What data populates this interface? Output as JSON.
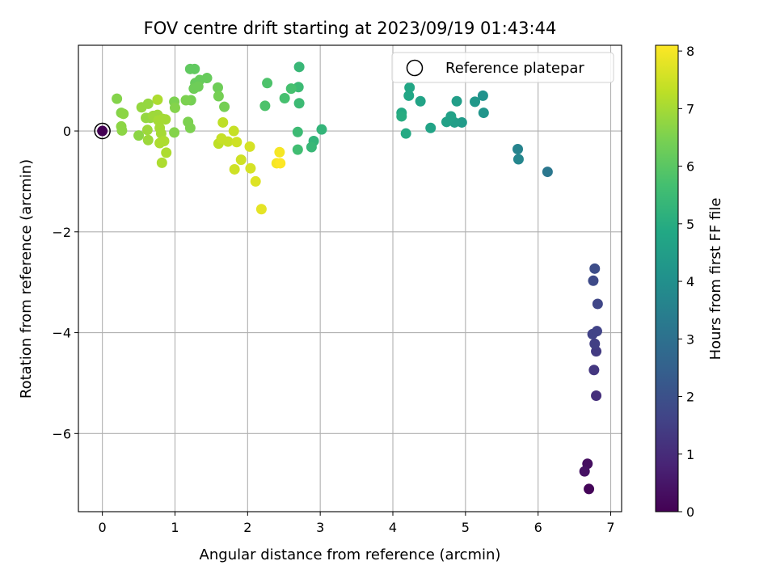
{
  "chart_data": {
    "type": "scatter",
    "title": "FOV centre drift starting at 2023/09/19 01:43:44",
    "xlabel": "Angular distance from reference (arcmin)",
    "ylabel": "Rotation from reference (arcmin)",
    "xlim": [
      -0.33,
      7.15
    ],
    "ylim": [
      -7.55,
      1.7
    ],
    "xticks": [
      0,
      1,
      2,
      3,
      4,
      5,
      6,
      7
    ],
    "xtick_labels": [
      "0",
      "1",
      "2",
      "3",
      "4",
      "5",
      "6",
      "7"
    ],
    "yticks": [
      -6,
      -4,
      -2,
      0
    ],
    "ytick_labels": [
      "−6",
      "−4",
      "−2",
      "0"
    ],
    "grid": true,
    "legend": {
      "position": "top-right",
      "entries": [
        "Reference platepar"
      ]
    },
    "colorbar": {
      "label": "Hours from first FF file",
      "range": [
        0,
        8.1
      ],
      "ticks": [
        0,
        1,
        2,
        3,
        4,
        5,
        6,
        7,
        8
      ],
      "tick_labels": [
        "0",
        "1",
        "2",
        "3",
        "4",
        "5",
        "6",
        "7",
        "8"
      ],
      "colormap": "viridis"
    },
    "reference_point": {
      "x": 0,
      "y": 0,
      "hours": 0
    },
    "points": [
      {
        "x": 6.7,
        "y": -7.1,
        "h": 0.1
      },
      {
        "x": 6.68,
        "y": -6.6,
        "h": 0.3
      },
      {
        "x": 6.64,
        "y": -6.75,
        "h": 0.4
      },
      {
        "x": 6.8,
        "y": -5.25,
        "h": 1.1
      },
      {
        "x": 6.77,
        "y": -4.74,
        "h": 1.3
      },
      {
        "x": 6.8,
        "y": -4.37,
        "h": 1.4
      },
      {
        "x": 6.78,
        "y": -4.22,
        "h": 1.5
      },
      {
        "x": 6.75,
        "y": -4.03,
        "h": 1.6
      },
      {
        "x": 6.81,
        "y": -3.97,
        "h": 1.6
      },
      {
        "x": 6.82,
        "y": -3.43,
        "h": 1.7
      },
      {
        "x": 6.76,
        "y": -2.97,
        "h": 1.8
      },
      {
        "x": 6.78,
        "y": -2.73,
        "h": 1.9
      },
      {
        "x": 6.13,
        "y": -0.81,
        "h": 3.2
      },
      {
        "x": 5.72,
        "y": -0.36,
        "h": 3.6
      },
      {
        "x": 5.73,
        "y": -0.56,
        "h": 3.7
      },
      {
        "x": 5.24,
        "y": 0.7,
        "h": 4.1
      },
      {
        "x": 5.25,
        "y": 0.36,
        "h": 4.2
      },
      {
        "x": 5.13,
        "y": 0.58,
        "h": 4.3
      },
      {
        "x": 4.95,
        "y": 0.17,
        "h": 4.4
      },
      {
        "x": 4.88,
        "y": 0.59,
        "h": 4.5
      },
      {
        "x": 4.85,
        "y": 0.17,
        "h": 4.5
      },
      {
        "x": 4.8,
        "y": 0.29,
        "h": 4.6
      },
      {
        "x": 4.74,
        "y": 0.18,
        "h": 4.6
      },
      {
        "x": 4.52,
        "y": 0.06,
        "h": 4.7
      },
      {
        "x": 4.38,
        "y": 0.59,
        "h": 4.7
      },
      {
        "x": 4.23,
        "y": 0.86,
        "h": 4.8
      },
      {
        "x": 4.22,
        "y": 0.7,
        "h": 4.8
      },
      {
        "x": 4.18,
        "y": -0.05,
        "h": 4.9
      },
      {
        "x": 4.12,
        "y": 0.36,
        "h": 4.9
      },
      {
        "x": 4.12,
        "y": 0.29,
        "h": 5.0
      },
      {
        "x": 3.02,
        "y": 0.03,
        "h": 5.3
      },
      {
        "x": 2.91,
        "y": -0.2,
        "h": 5.3
      },
      {
        "x": 2.88,
        "y": -0.32,
        "h": 5.4
      },
      {
        "x": 2.71,
        "y": 1.27,
        "h": 5.4
      },
      {
        "x": 2.7,
        "y": 0.87,
        "h": 5.5
      },
      {
        "x": 2.71,
        "y": 0.55,
        "h": 5.5
      },
      {
        "x": 2.69,
        "y": -0.02,
        "h": 5.5
      },
      {
        "x": 2.69,
        "y": -0.37,
        "h": 5.6
      },
      {
        "x": 2.6,
        "y": 0.84,
        "h": 5.7
      },
      {
        "x": 2.51,
        "y": 0.65,
        "h": 5.7
      },
      {
        "x": 2.27,
        "y": 0.95,
        "h": 5.8
      },
      {
        "x": 2.24,
        "y": 0.5,
        "h": 5.8
      },
      {
        "x": 1.27,
        "y": 1.23,
        "h": 6.1
      },
      {
        "x": 1.21,
        "y": 1.23,
        "h": 6.1
      },
      {
        "x": 1.34,
        "y": 1.01,
        "h": 6.2
      },
      {
        "x": 1.28,
        "y": 0.95,
        "h": 6.2
      },
      {
        "x": 1.44,
        "y": 1.05,
        "h": 6.2
      },
      {
        "x": 1.32,
        "y": 0.88,
        "h": 6.3
      },
      {
        "x": 1.26,
        "y": 0.84,
        "h": 6.3
      },
      {
        "x": 1.59,
        "y": 0.86,
        "h": 6.3
      },
      {
        "x": 1.6,
        "y": 0.69,
        "h": 6.4
      },
      {
        "x": 1.68,
        "y": 0.48,
        "h": 6.4
      },
      {
        "x": 1.22,
        "y": 0.61,
        "h": 6.4
      },
      {
        "x": 1.15,
        "y": 0.61,
        "h": 6.5
      },
      {
        "x": 1.18,
        "y": 0.18,
        "h": 6.5
      },
      {
        "x": 1.21,
        "y": 0.06,
        "h": 6.5
      },
      {
        "x": 0.99,
        "y": 0.58,
        "h": 6.5
      },
      {
        "x": 1.0,
        "y": 0.46,
        "h": 6.6
      },
      {
        "x": 0.99,
        "y": -0.03,
        "h": 6.6
      },
      {
        "x": 0.2,
        "y": 0.64,
        "h": 6.6
      },
      {
        "x": 0.26,
        "y": 0.36,
        "h": 6.6
      },
      {
        "x": 0.29,
        "y": 0.34,
        "h": 6.7
      },
      {
        "x": 0.26,
        "y": 0.09,
        "h": 6.7
      },
      {
        "x": 0.27,
        "y": 0.01,
        "h": 6.7
      },
      {
        "x": 0.5,
        "y": -0.09,
        "h": 6.7
      },
      {
        "x": 0.54,
        "y": 0.47,
        "h": 6.8
      },
      {
        "x": 0.63,
        "y": 0.54,
        "h": 6.8
      },
      {
        "x": 0.6,
        "y": 0.26,
        "h": 6.8
      },
      {
        "x": 0.66,
        "y": 0.26,
        "h": 6.8
      },
      {
        "x": 0.62,
        "y": 0.02,
        "h": 6.9
      },
      {
        "x": 0.63,
        "y": -0.18,
        "h": 6.9
      },
      {
        "x": 0.7,
        "y": 0.3,
        "h": 6.9
      },
      {
        "x": 0.76,
        "y": 0.32,
        "h": 6.9
      },
      {
        "x": 0.77,
        "y": 0.21,
        "h": 7.0
      },
      {
        "x": 0.79,
        "y": 0.06,
        "h": 7.0
      },
      {
        "x": 0.83,
        "y": 0.24,
        "h": 7.0
      },
      {
        "x": 0.87,
        "y": 0.23,
        "h": 7.0
      },
      {
        "x": 0.81,
        "y": -0.05,
        "h": 7.0
      },
      {
        "x": 0.85,
        "y": -0.2,
        "h": 7.1
      },
      {
        "x": 0.79,
        "y": -0.24,
        "h": 7.1
      },
      {
        "x": 0.88,
        "y": -0.43,
        "h": 7.1
      },
      {
        "x": 0.82,
        "y": -0.63,
        "h": 7.1
      },
      {
        "x": 0.76,
        "y": 0.62,
        "h": 7.1
      },
      {
        "x": 1.66,
        "y": 0.17,
        "h": 7.3
      },
      {
        "x": 1.6,
        "y": -0.25,
        "h": 7.3
      },
      {
        "x": 1.64,
        "y": -0.15,
        "h": 7.4
      },
      {
        "x": 1.73,
        "y": -0.21,
        "h": 7.4
      },
      {
        "x": 1.81,
        "y": 0.0,
        "h": 7.4
      },
      {
        "x": 1.85,
        "y": -0.22,
        "h": 7.5
      },
      {
        "x": 1.91,
        "y": -0.57,
        "h": 7.5
      },
      {
        "x": 1.82,
        "y": -0.76,
        "h": 7.5
      },
      {
        "x": 2.03,
        "y": -0.31,
        "h": 7.6
      },
      {
        "x": 2.04,
        "y": -0.74,
        "h": 7.6
      },
      {
        "x": 2.11,
        "y": -1.0,
        "h": 7.7
      },
      {
        "x": 2.19,
        "y": -1.55,
        "h": 7.8
      },
      {
        "x": 2.44,
        "y": -0.42,
        "h": 8.0
      },
      {
        "x": 2.4,
        "y": -0.64,
        "h": 8.0
      },
      {
        "x": 2.45,
        "y": -0.64,
        "h": 8.1
      }
    ]
  }
}
